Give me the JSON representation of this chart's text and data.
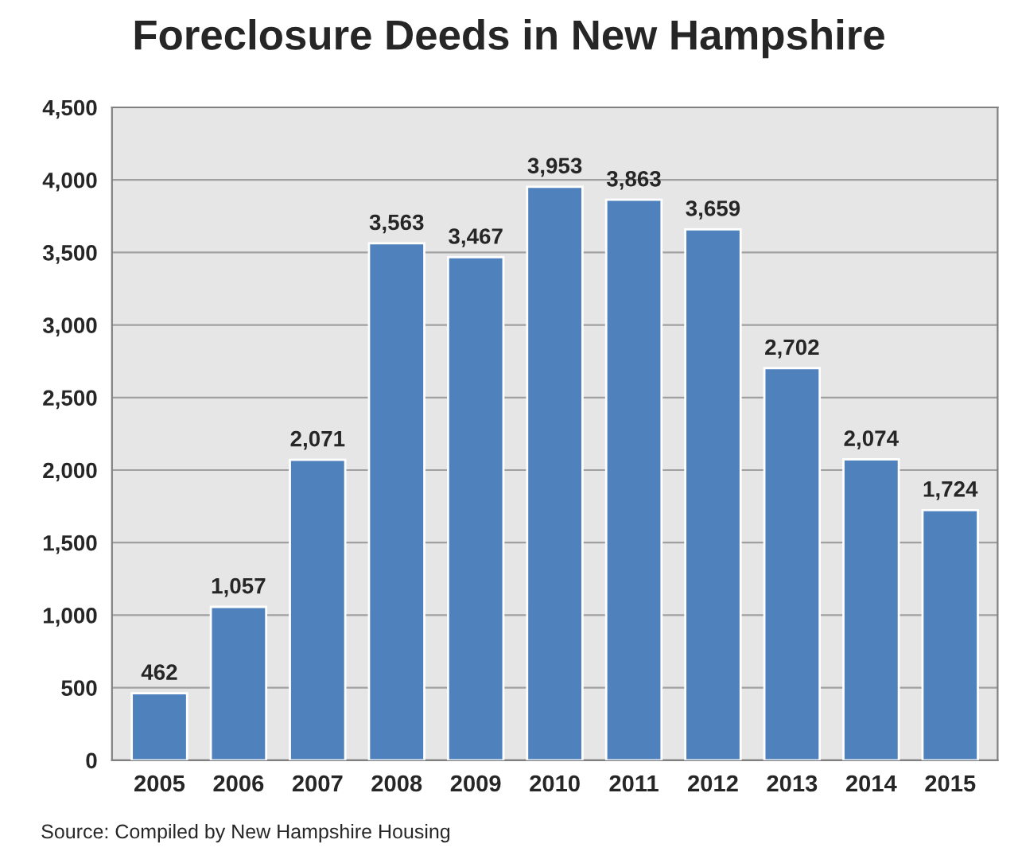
{
  "chart_data": {
    "type": "bar",
    "title": "Foreclosure Deeds in New Hampshire",
    "categories": [
      "2005",
      "2006",
      "2007",
      "2008",
      "2009",
      "2010",
      "2011",
      "2012",
      "2013",
      "2014",
      "2015"
    ],
    "values": [
      462,
      1057,
      2071,
      3563,
      3467,
      3953,
      3863,
      3659,
      2702,
      2074,
      1724
    ],
    "value_labels": [
      "462",
      "1,057",
      "2,071",
      "3,563",
      "3,467",
      "3,953",
      "3,863",
      "3,659",
      "2,702",
      "2,074",
      "1,724"
    ],
    "color": "#4f81bd",
    "ylim": [
      0,
      4500
    ],
    "yticks": [
      {
        "value": 0,
        "label": "0"
      },
      {
        "value": 500,
        "label": "500"
      },
      {
        "value": 1000,
        "label": "1,000"
      },
      {
        "value": 1500,
        "label": "1,500"
      },
      {
        "value": 2000,
        "label": "2,000"
      },
      {
        "value": 2500,
        "label": "2,500"
      },
      {
        "value": 3000,
        "label": "3,000"
      },
      {
        "value": 3500,
        "label": "3,500"
      },
      {
        "value": 4000,
        "label": "4,000"
      },
      {
        "value": 4500,
        "label": "4,500"
      }
    ],
    "grid": "y",
    "annotations": [
      "Source: Compiled by New Hampshire Housing"
    ]
  }
}
